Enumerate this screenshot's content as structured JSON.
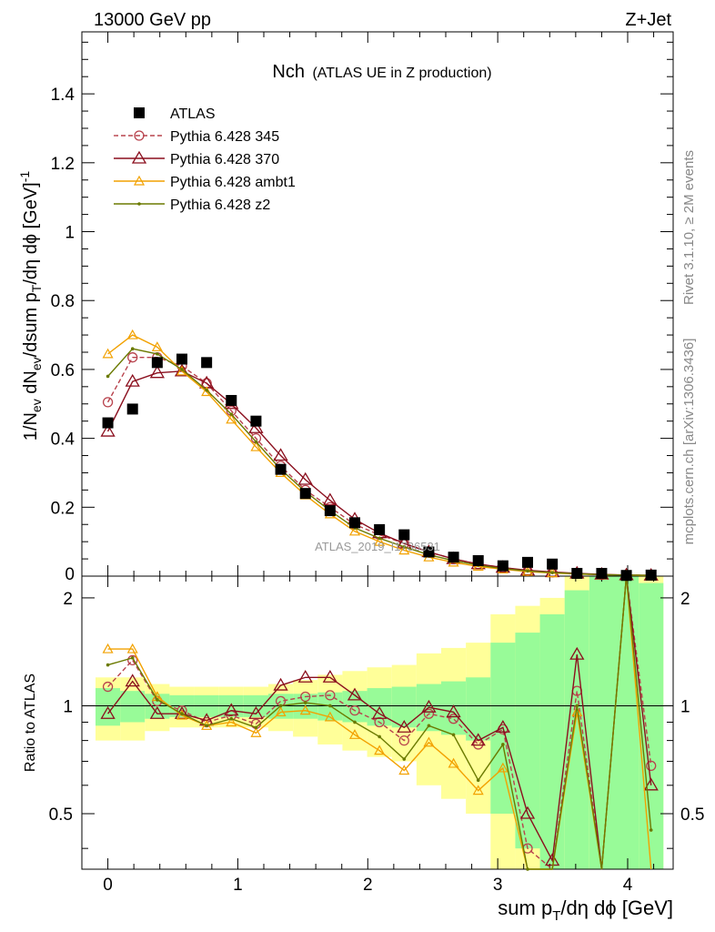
{
  "header": {
    "energy_label": "13000 GeV pp",
    "process_label": "Z+Jet",
    "plot_title": "Nch",
    "plot_subtitle": "(ATLAS UE in Z production)",
    "watermark": "ATLAS_2019_I1736531",
    "side_rivet": "Rivet 3.1.10, ≥ 2M events",
    "side_mcplots": "mcplots.cern.ch [arXiv:1306.3436]"
  },
  "chart_data": {
    "type": "scatter",
    "x_axis": {
      "label": "sum p_T/dη dϕ [GeV]",
      "range": [
        -0.2,
        4.35
      ],
      "ticks": [
        0,
        1,
        2,
        3,
        4
      ],
      "tick_labels": [
        "0",
        "1",
        "2",
        "3",
        "4"
      ]
    },
    "main_panel": {
      "ylabel": "1/N_ev dN_ev/dsum p_T/dη dϕ [GeV]^-1",
      "ylim": [
        0,
        1.58
      ],
      "yticks": [
        0.2,
        0.4,
        0.6,
        0.8,
        1,
        1.2,
        1.4
      ],
      "ytick_labels": [
        "0.2",
        "0.4",
        "0.6",
        "0.8",
        "1",
        "1.2",
        "1.4"
      ],
      "y_zero_label": "0"
    },
    "ratio_panel": {
      "ylabel": "Ratio to ATLAS",
      "ylim": [
        0.35,
        2.3
      ],
      "yticks": [
        0.5,
        1,
        2
      ],
      "ytick_labels": [
        "0.5",
        "1",
        "2"
      ],
      "reference_line": 1
    },
    "x": [
      0.0,
      0.19,
      0.38,
      0.57,
      0.76,
      0.95,
      1.14,
      1.33,
      1.52,
      1.71,
      1.9,
      2.09,
      2.28,
      2.47,
      2.66,
      2.85,
      3.04,
      3.23,
      3.42,
      3.61,
      3.8,
      3.99,
      4.18
    ],
    "legend": {
      "position": "top-left",
      "entries": [
        "ATLAS",
        "Pythia 6.428 345",
        "Pythia 6.428 370",
        "Pythia 6.428 ambt1",
        "Pythia 6.428 z2"
      ]
    },
    "data_series": {
      "name": "ATLAS",
      "color": "#000000",
      "values": [
        0.445,
        0.485,
        0.62,
        0.63,
        0.62,
        0.51,
        0.45,
        0.31,
        0.24,
        0.19,
        0.155,
        0.135,
        0.12,
        0.07,
        0.055,
        0.045,
        0.03,
        0.04,
        0.035,
        0.008,
        0.008,
        0.002,
        0.003
      ]
    },
    "bands": {
      "inner_color": "#98fb98",
      "outer_color": "#ffff99",
      "inner": [
        [
          0.88,
          1.12
        ],
        [
          0.9,
          1.1
        ],
        [
          0.92,
          1.08
        ],
        [
          0.93,
          1.07
        ],
        [
          0.93,
          1.07
        ],
        [
          0.93,
          1.07
        ],
        [
          0.93,
          1.07
        ],
        [
          0.92,
          1.08
        ],
        [
          0.92,
          1.08
        ],
        [
          0.91,
          1.09
        ],
        [
          0.9,
          1.1
        ],
        [
          0.88,
          1.12
        ],
        [
          0.87,
          1.13
        ],
        [
          0.85,
          1.15
        ],
        [
          0.83,
          1.17
        ],
        [
          0.8,
          1.2
        ],
        [
          0.5,
          1.5
        ],
        [
          0.4,
          1.6
        ],
        [
          0.3,
          1.8
        ],
        [
          0.2,
          2.1
        ],
        [
          0.2,
          2.3
        ],
        [
          0.2,
          2.4
        ],
        [
          0.2,
          2.2
        ]
      ],
      "outer": [
        [
          0.8,
          1.2
        ],
        [
          0.8,
          1.2
        ],
        [
          0.85,
          1.15
        ],
        [
          0.87,
          1.13
        ],
        [
          0.87,
          1.13
        ],
        [
          0.87,
          1.13
        ],
        [
          0.87,
          1.13
        ],
        [
          0.85,
          1.15
        ],
        [
          0.82,
          1.18
        ],
        [
          0.78,
          1.22
        ],
        [
          0.75,
          1.25
        ],
        [
          0.72,
          1.28
        ],
        [
          0.7,
          1.3
        ],
        [
          0.6,
          1.4
        ],
        [
          0.55,
          1.45
        ],
        [
          0.5,
          1.5
        ],
        [
          0.3,
          1.8
        ],
        [
          0.3,
          1.9
        ],
        [
          0.2,
          2.0
        ],
        [
          0.2,
          2.5
        ],
        [
          0.2,
          2.5
        ],
        [
          0.2,
          2.6
        ],
        [
          0.2,
          2.6
        ]
      ]
    },
    "series": [
      {
        "name": "Pythia 6.428 345",
        "color": "#b8434d",
        "marker": "circle",
        "dashed": true,
        "values": [
          0.505,
          0.635,
          0.635,
          0.61,
          0.56,
          0.48,
          0.4,
          0.32,
          0.25,
          0.2,
          0.15,
          0.12,
          0.095,
          0.07,
          0.05,
          0.035,
          0.025,
          0.015,
          0.011,
          0.007,
          0.004,
          0.003,
          0.002
        ],
        "ratio": [
          1.13,
          1.34,
          1.03,
          0.97,
          0.9,
          0.94,
          0.89,
          1.03,
          1.06,
          1.07,
          0.97,
          0.9,
          0.8,
          0.95,
          0.92,
          0.78,
          0.86,
          0.4,
          0.28,
          1.1,
          0.3,
          2.4,
          0.68
        ]
      },
      {
        "name": "Pythia 6.428 370",
        "color": "#8b0f1e",
        "marker": "triangle",
        "dashed": false,
        "values": [
          0.42,
          0.565,
          0.59,
          0.595,
          0.56,
          0.5,
          0.43,
          0.35,
          0.28,
          0.22,
          0.165,
          0.125,
          0.095,
          0.07,
          0.05,
          0.035,
          0.025,
          0.017,
          0.012,
          0.008,
          0.005,
          0.003,
          0.002
        ],
        "ratio": [
          0.95,
          1.17,
          0.95,
          0.95,
          0.91,
          0.97,
          0.95,
          1.14,
          1.2,
          1.2,
          1.07,
          0.95,
          0.87,
          0.99,
          0.96,
          0.8,
          0.87,
          0.5,
          0.37,
          1.39,
          0.3,
          2.4,
          0.6
        ]
      },
      {
        "name": "Pythia 6.428 ambt1",
        "color": "#f2a100",
        "marker": "triangle-small",
        "dashed": false,
        "values": [
          0.645,
          0.7,
          0.665,
          0.595,
          0.535,
          0.455,
          0.375,
          0.3,
          0.235,
          0.18,
          0.13,
          0.1,
          0.075,
          0.055,
          0.04,
          0.028,
          0.02,
          0.013,
          0.009,
          0.006,
          0.004,
          0.003,
          0.002
        ],
        "ratio": [
          1.44,
          1.44,
          1.06,
          0.94,
          0.88,
          0.9,
          0.84,
          0.96,
          0.97,
          0.93,
          0.83,
          0.75,
          0.66,
          0.79,
          0.69,
          0.58,
          0.67,
          0.3,
          0.2,
          0.96,
          0.25,
          2.3,
          0.3
        ]
      },
      {
        "name": "Pythia 6.428 z2",
        "color": "#6b7a00",
        "marker": "dot",
        "dashed": false,
        "values": [
          0.58,
          0.66,
          0.645,
          0.6,
          0.54,
          0.47,
          0.39,
          0.31,
          0.245,
          0.19,
          0.14,
          0.11,
          0.085,
          0.062,
          0.045,
          0.032,
          0.022,
          0.015,
          0.01,
          0.007,
          0.004,
          0.003,
          0.002
        ],
        "ratio": [
          1.3,
          1.36,
          1.04,
          0.95,
          0.88,
          0.92,
          0.87,
          1.0,
          1.02,
          1.0,
          0.9,
          0.82,
          0.71,
          0.88,
          0.83,
          0.62,
          0.78,
          0.35,
          0.25,
          1.0,
          0.28,
          2.4,
          0.45
        ]
      }
    ]
  }
}
